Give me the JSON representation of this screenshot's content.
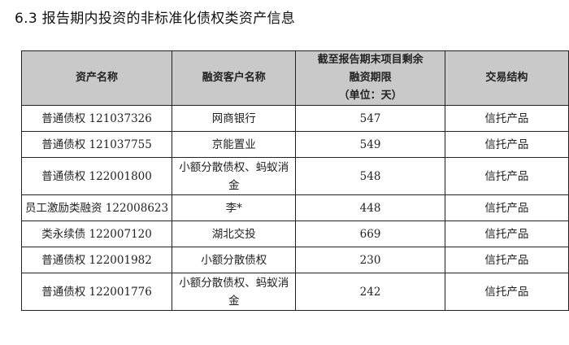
{
  "title": "6.3 报告期内投资的非标准化债权类资产信息",
  "table": {
    "headers": [
      "资产名称",
      "融资客户名称",
      "截至报告期末项目剩余融资期限",
      "交易结构"
    ],
    "header_sub": [
      "融资期限",
      "（单位：天）"
    ],
    "header_col3_line1": "截至报告期末项目剩余",
    "rows": [
      [
        "普通债权 121037326",
        "网商银行",
        "547",
        "信托产品"
      ],
      [
        "普通债权 121037755",
        "京能置业",
        "549",
        "信托产品"
      ],
      [
        "普通债权 122001800",
        "小额分散债权、蚂蚁消金",
        "548",
        "信托产品"
      ],
      [
        "员工激励类融资 122008623",
        "李*",
        "448",
        "信托产品"
      ],
      [
        "类永续债 122007120",
        "湖北交投",
        "669",
        "信托产品"
      ],
      [
        "普通债权 122001982",
        "小额分散债权",
        "230",
        "信托产品"
      ],
      [
        "普通债权 122001776",
        "小额分散债权、蚂蚁消金",
        "242",
        "信托产品"
      ]
    ]
  }
}
